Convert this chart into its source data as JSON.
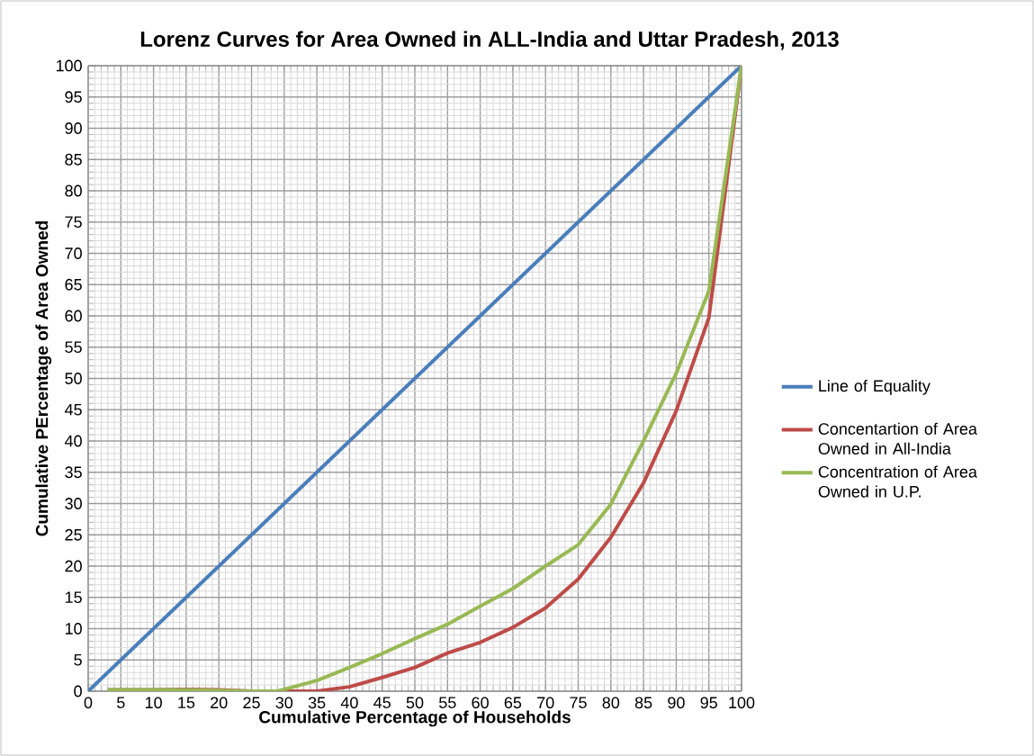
{
  "chart_data": {
    "type": "line",
    "title": "Lorenz Curves for Area Owned in ALL-India and Uttar Pradesh, 2013",
    "xlabel": "Cumulative Percentage of Households",
    "ylabel": "Cumulative PErcentage of Area Owned",
    "series": [
      {
        "name": "Line of Equality",
        "color": "#4a7ebb",
        "x": [
          0,
          100
        ],
        "values": [
          0,
          100
        ]
      },
      {
        "name": "Concentartion of Area Owned in All-India",
        "color": "#be4b48",
        "x": [
          3,
          10,
          15,
          20,
          25,
          29,
          35,
          40,
          45,
          50,
          55,
          60,
          65,
          70,
          75,
          80,
          85,
          90,
          95,
          100
        ],
        "values": [
          0.2,
          0.2,
          0.3,
          0.2,
          0,
          0,
          0,
          0.7,
          2.2,
          3.8,
          6.1,
          7.8,
          10.2,
          13.3,
          17.9,
          24.6,
          33.3,
          44.8,
          59.7,
          100
        ]
      },
      {
        "name": "Concentration of Area Owned in U.P.",
        "color": "#98b954",
        "x": [
          3,
          10,
          15,
          20,
          25,
          29,
          35,
          40,
          45,
          50,
          55,
          60,
          65,
          70,
          75,
          80,
          85,
          90,
          95,
          100
        ],
        "values": [
          0.2,
          0.2,
          0.2,
          0.1,
          0,
          0,
          1.7,
          3.8,
          6,
          8.4,
          10.7,
          13.6,
          16.4,
          20,
          23.4,
          29.9,
          40,
          50.8,
          64,
          100
        ]
      }
    ],
    "xlim": [
      0,
      100
    ],
    "ylim": [
      0,
      100
    ],
    "xticks": [
      0,
      5,
      10,
      15,
      20,
      25,
      30,
      35,
      40,
      45,
      50,
      55,
      60,
      65,
      70,
      75,
      80,
      85,
      90,
      95,
      100
    ],
    "yticks": [
      0,
      5,
      10,
      15,
      20,
      25,
      30,
      35,
      40,
      45,
      50,
      55,
      60,
      65,
      70,
      75,
      80,
      85,
      90,
      95,
      100
    ],
    "grid": true,
    "legend": "right",
    "marker": "none",
    "line_style": "solid"
  }
}
